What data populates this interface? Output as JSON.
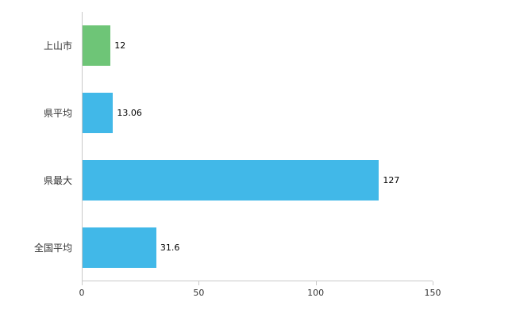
{
  "chart_data": {
    "type": "bar",
    "orientation": "horizontal",
    "title": "",
    "xlabel": "",
    "ylabel": "",
    "xlim": [
      0,
      150
    ],
    "xticks": [
      "0",
      "50",
      "100",
      "150"
    ],
    "grid": false,
    "legend": false,
    "categories": [
      "上山市",
      "県平均",
      "県最大",
      "全国平均"
    ],
    "items": [
      {
        "label": "上山市",
        "value": 12,
        "display": "12",
        "color": "#6ec577"
      },
      {
        "label": "県平均",
        "value": 13.06,
        "display": "13.06",
        "color": "#41b8e8"
      },
      {
        "label": "県最大",
        "value": 127,
        "display": "127",
        "color": "#41b8e8"
      },
      {
        "label": "全国平均",
        "value": 31.6,
        "display": "31.6",
        "color": "#41b8e8"
      }
    ],
    "axis_color": "#c9c9c9",
    "label_color": "#333333",
    "value_label_color": "#000000"
  }
}
